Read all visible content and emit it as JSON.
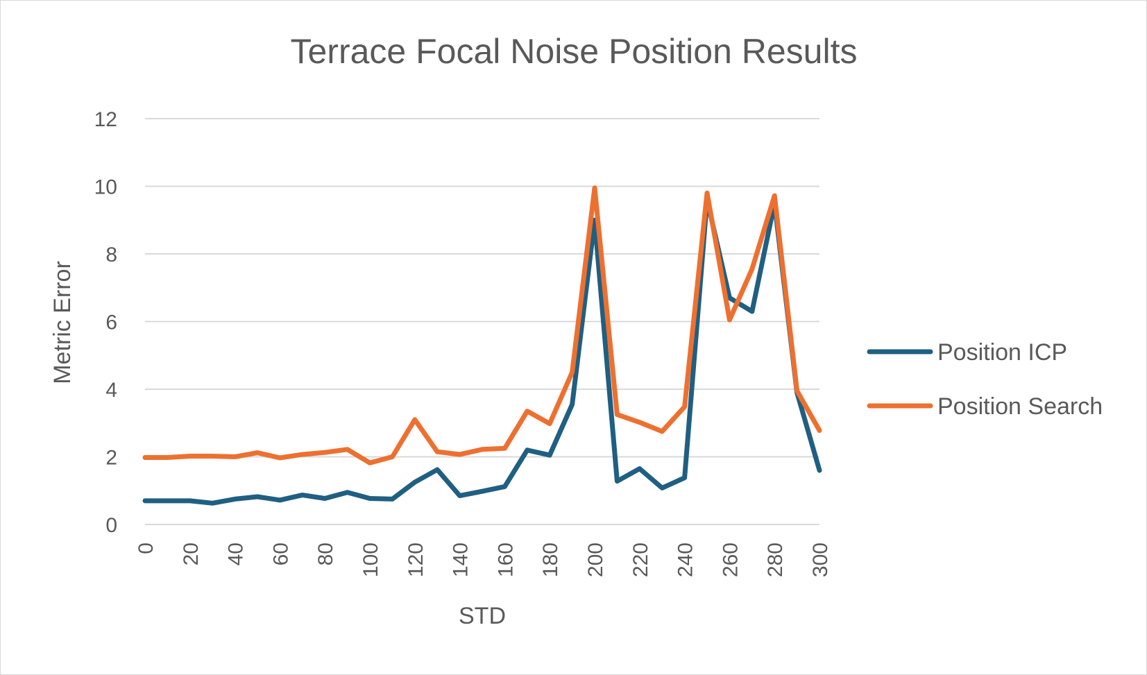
{
  "chart_data": {
    "type": "line",
    "title": "Terrace Focal Noise Position Results",
    "xlabel": "STD",
    "ylabel": "Metric Error",
    "ylim": [
      0,
      12
    ],
    "yticks": [
      0,
      2,
      4,
      6,
      8,
      10,
      12
    ],
    "grid": true,
    "legend": "right",
    "x": [
      0,
      10,
      20,
      30,
      40,
      50,
      60,
      70,
      80,
      90,
      100,
      110,
      120,
      130,
      140,
      150,
      160,
      170,
      180,
      190,
      200,
      210,
      220,
      230,
      240,
      250,
      260,
      270,
      280,
      290,
      300
    ],
    "xtick_labels": [
      "0",
      "20",
      "40",
      "60",
      "80",
      "100",
      "120",
      "140",
      "160",
      "180",
      "200",
      "220",
      "240",
      "260",
      "280",
      "300"
    ],
    "series": [
      {
        "name": "Position ICP",
        "color": "#1f5f82",
        "values": [
          0.7,
          0.7,
          0.7,
          0.63,
          0.75,
          0.82,
          0.72,
          0.87,
          0.77,
          0.95,
          0.77,
          0.75,
          1.25,
          1.62,
          0.85,
          0.98,
          1.12,
          2.2,
          2.05,
          3.55,
          9.0,
          1.28,
          1.65,
          1.08,
          1.38,
          9.6,
          6.7,
          6.3,
          9.5,
          3.9,
          1.6
        ]
      },
      {
        "name": "Position Search",
        "color": "#ed7030",
        "values": [
          1.98,
          1.98,
          2.02,
          2.02,
          2.0,
          2.12,
          1.97,
          2.07,
          2.13,
          2.22,
          1.82,
          2.0,
          3.1,
          2.15,
          2.07,
          2.22,
          2.25,
          3.35,
          2.98,
          4.5,
          9.95,
          3.25,
          3.02,
          2.75,
          3.48,
          9.8,
          6.05,
          7.55,
          9.72,
          3.95,
          2.78
        ]
      }
    ]
  }
}
